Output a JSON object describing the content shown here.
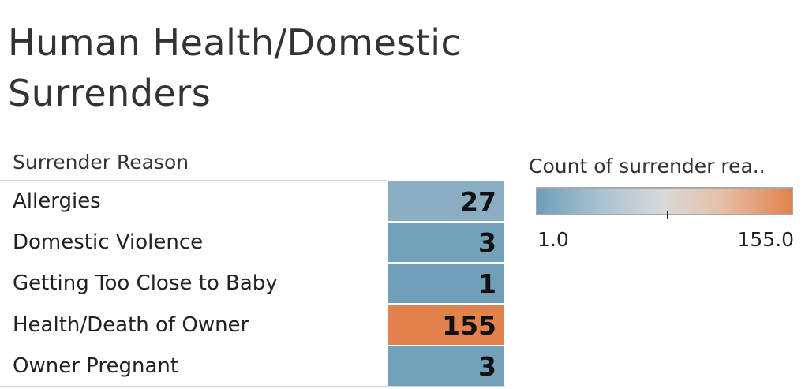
{
  "chart_data": {
    "type": "table",
    "title_lines": [
      "Human Health/Domestic",
      "Surrenders"
    ],
    "column_header": "Surrender Reason",
    "categories": [
      "Allergies",
      "Domestic Violence",
      "Getting Too Close to Baby",
      "Health/Death of Owner",
      "Owner Pregnant"
    ],
    "values": [
      27,
      3,
      1,
      155,
      3
    ],
    "legend": {
      "title": "Count of surrender rea..",
      "min_label": "1.0",
      "max_label": "155.0",
      "min": 1,
      "max": 155,
      "color_low": "#6f9fb9",
      "color_mid": "#d9d9d9",
      "color_high": "#e2834d"
    }
  }
}
